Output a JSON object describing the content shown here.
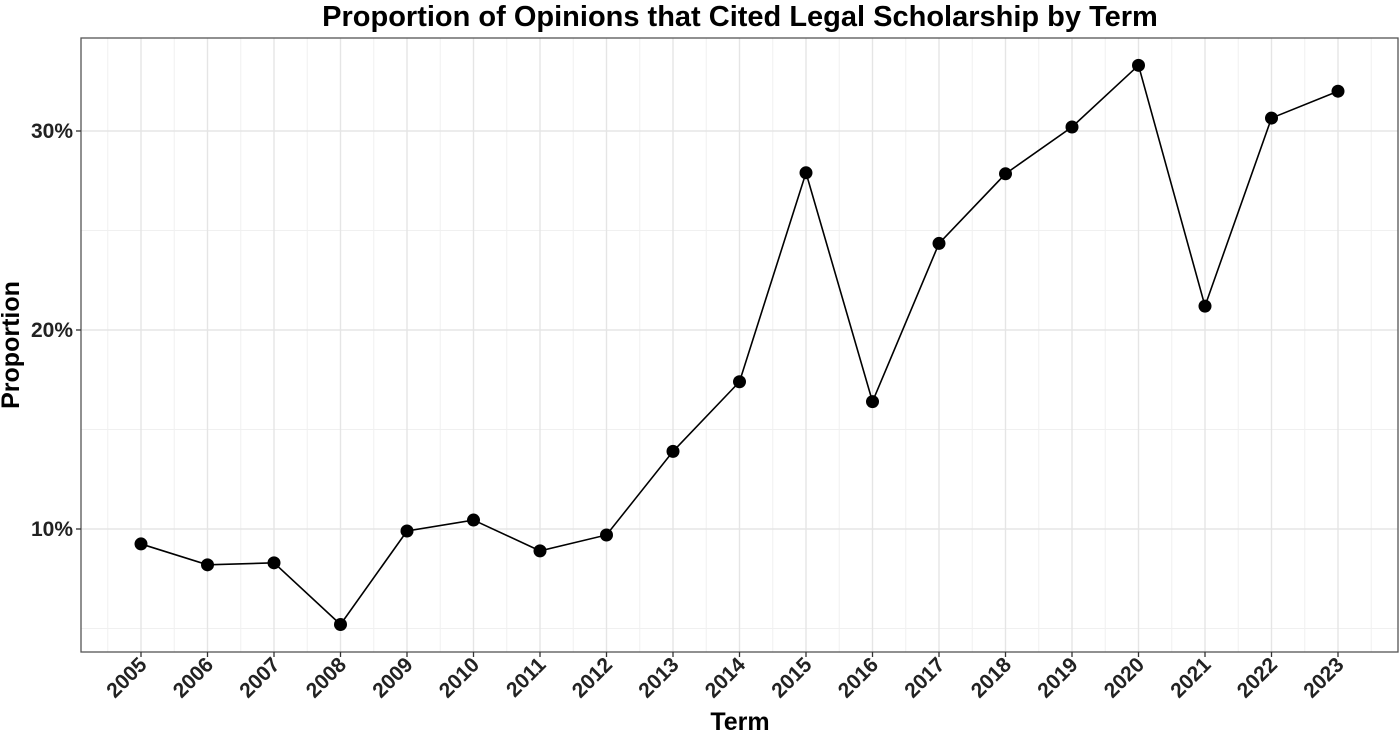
{
  "chart_data": {
    "type": "line",
    "title": "Proportion of Opinions that Cited Legal Scholarship by Term",
    "xlabel": "Term",
    "ylabel": "Proportion",
    "categories": [
      "2005",
      "2006",
      "2007",
      "2008",
      "2009",
      "2010",
      "2011",
      "2012",
      "2013",
      "2014",
      "2015",
      "2016",
      "2017",
      "2018",
      "2019",
      "2020",
      "2021",
      "2022",
      "2023"
    ],
    "series": [
      {
        "name": "Proportion",
        "values": [
          9.25,
          8.2,
          8.3,
          5.2,
          9.9,
          10.45,
          8.9,
          9.7,
          13.9,
          17.4,
          27.9,
          16.4,
          24.35,
          27.85,
          30.2,
          33.3,
          21.2,
          30.65,
          32.0
        ]
      }
    ],
    "y_ticks": [
      10,
      20,
      30
    ],
    "y_tick_labels": [
      "10%",
      "20%",
      "30%"
    ],
    "y_minor_ticks": [
      5,
      15,
      25
    ],
    "ylim": [
      3.9,
      34.6
    ],
    "grid": true,
    "legend": "none",
    "colors": {
      "line": "#000000",
      "point": "#000000",
      "grid": "#e5e5e5",
      "border": "#555555"
    }
  }
}
